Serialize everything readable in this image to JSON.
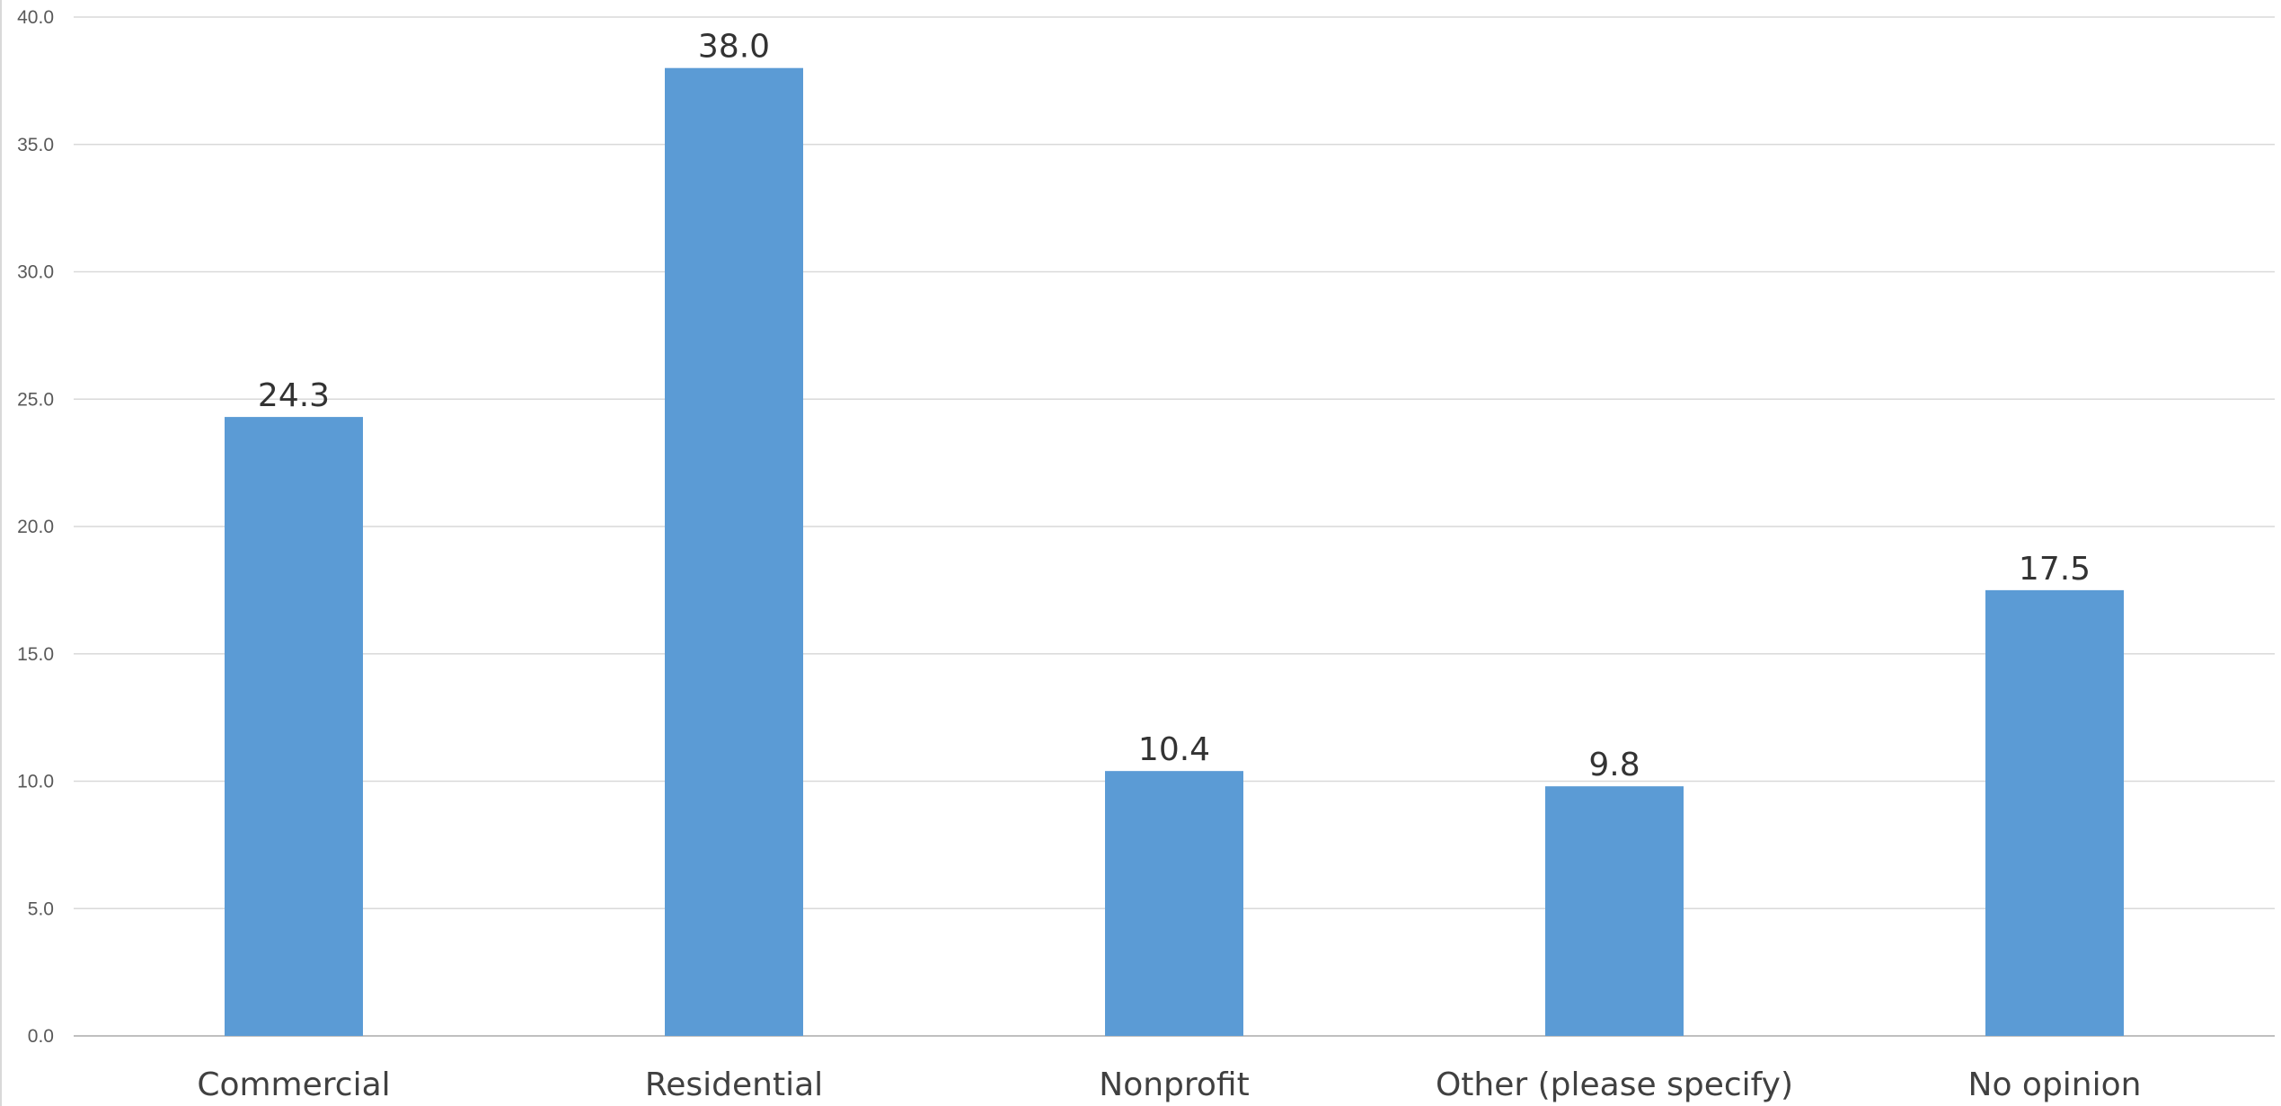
{
  "chart_data": {
    "type": "bar",
    "categories": [
      "Commercial",
      "Residential",
      "Nonprofit",
      "Other (please specify)",
      "No opinion"
    ],
    "values": [
      24.3,
      38.0,
      10.4,
      9.8,
      17.5
    ],
    "data_labels": [
      "24.3",
      "38.0",
      "10.4",
      "9.8",
      "17.5"
    ],
    "yticks": [
      "0.0",
      "5.0",
      "10.0",
      "15.0",
      "20.0",
      "25.0",
      "30.0",
      "35.0",
      "40.0"
    ],
    "ylim": [
      0,
      40
    ],
    "grid": true,
    "legend": "none",
    "title": "",
    "xlabel": "",
    "ylabel": "",
    "colors": {
      "bar": "#5B9BD5",
      "grid": "#D9D9D9",
      "axis": "#BFBFBF"
    }
  }
}
